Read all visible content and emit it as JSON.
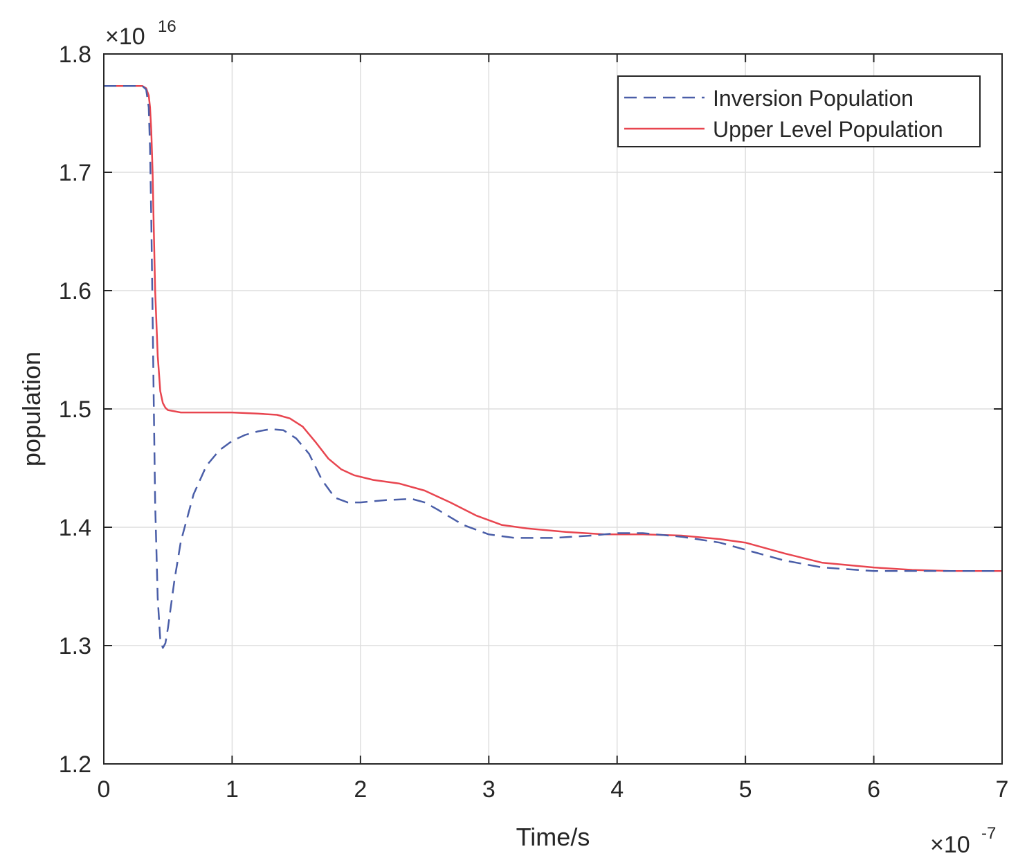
{
  "chart_data": {
    "type": "line",
    "title": "",
    "xlabel": "Time/s",
    "ylabel": "population",
    "x_multiplier_label": {
      "base": "×10",
      "exponent": "-7"
    },
    "y_multiplier_label": {
      "base": "×10",
      "exponent": "16"
    },
    "xlim": [
      0,
      7
    ],
    "ylim": [
      1.2,
      1.8
    ],
    "xticks": [
      0,
      1,
      2,
      3,
      4,
      5,
      6,
      7
    ],
    "xtick_labels": [
      "0",
      "1",
      "2",
      "3",
      "4",
      "5",
      "6",
      "7"
    ],
    "yticks": [
      1.2,
      1.3,
      1.4,
      1.5,
      1.6,
      1.7,
      1.8
    ],
    "ytick_labels": [
      "1.2",
      "1.3",
      "1.4",
      "1.5",
      "1.6",
      "1.7",
      "1.8"
    ],
    "grid": true,
    "legend_position": "top-right",
    "series": [
      {
        "name": "Inversion Population",
        "color": "#4a5ea8",
        "style": "dashed",
        "x": [
          0,
          0.3,
          0.33,
          0.35,
          0.36,
          0.37,
          0.38,
          0.39,
          0.4,
          0.42,
          0.44,
          0.46,
          0.48,
          0.5,
          0.55,
          0.6,
          0.7,
          0.8,
          0.9,
          1.0,
          1.1,
          1.2,
          1.3,
          1.4,
          1.5,
          1.6,
          1.7,
          1.8,
          1.9,
          2.0,
          2.2,
          2.4,
          2.5,
          2.6,
          2.8,
          3.0,
          3.2,
          3.5,
          3.8,
          4.0,
          4.2,
          4.5,
          4.8,
          5.0,
          5.3,
          5.6,
          6.0,
          6.3,
          6.6,
          7.0
        ],
        "y": [
          1.773,
          1.773,
          1.77,
          1.755,
          1.72,
          1.66,
          1.58,
          1.5,
          1.42,
          1.34,
          1.305,
          1.298,
          1.302,
          1.315,
          1.355,
          1.388,
          1.428,
          1.452,
          1.465,
          1.473,
          1.478,
          1.481,
          1.483,
          1.482,
          1.475,
          1.462,
          1.44,
          1.425,
          1.421,
          1.421,
          1.423,
          1.424,
          1.421,
          1.415,
          1.402,
          1.394,
          1.391,
          1.391,
          1.393,
          1.395,
          1.395,
          1.392,
          1.387,
          1.381,
          1.372,
          1.366,
          1.363,
          1.363,
          1.363,
          1.363
        ]
      },
      {
        "name": "Upper Level Population",
        "color": "#e8454f",
        "style": "solid",
        "x": [
          0,
          0.3,
          0.33,
          0.35,
          0.36,
          0.37,
          0.38,
          0.39,
          0.4,
          0.42,
          0.44,
          0.46,
          0.48,
          0.5,
          0.55,
          0.6,
          0.8,
          1.0,
          1.2,
          1.35,
          1.45,
          1.55,
          1.65,
          1.75,
          1.85,
          1.95,
          2.1,
          2.3,
          2.5,
          2.7,
          2.9,
          3.1,
          3.3,
          3.6,
          3.9,
          4.2,
          4.5,
          4.8,
          5.0,
          5.3,
          5.6,
          6.0,
          6.3,
          6.6,
          7.0
        ],
        "y": [
          1.773,
          1.773,
          1.771,
          1.765,
          1.755,
          1.735,
          1.7,
          1.65,
          1.6,
          1.545,
          1.515,
          1.505,
          1.501,
          1.499,
          1.498,
          1.497,
          1.497,
          1.497,
          1.496,
          1.495,
          1.492,
          1.485,
          1.472,
          1.458,
          1.449,
          1.444,
          1.44,
          1.437,
          1.431,
          1.421,
          1.41,
          1.402,
          1.399,
          1.396,
          1.394,
          1.394,
          1.393,
          1.39,
          1.387,
          1.378,
          1.37,
          1.366,
          1.364,
          1.363,
          1.363
        ]
      }
    ]
  }
}
